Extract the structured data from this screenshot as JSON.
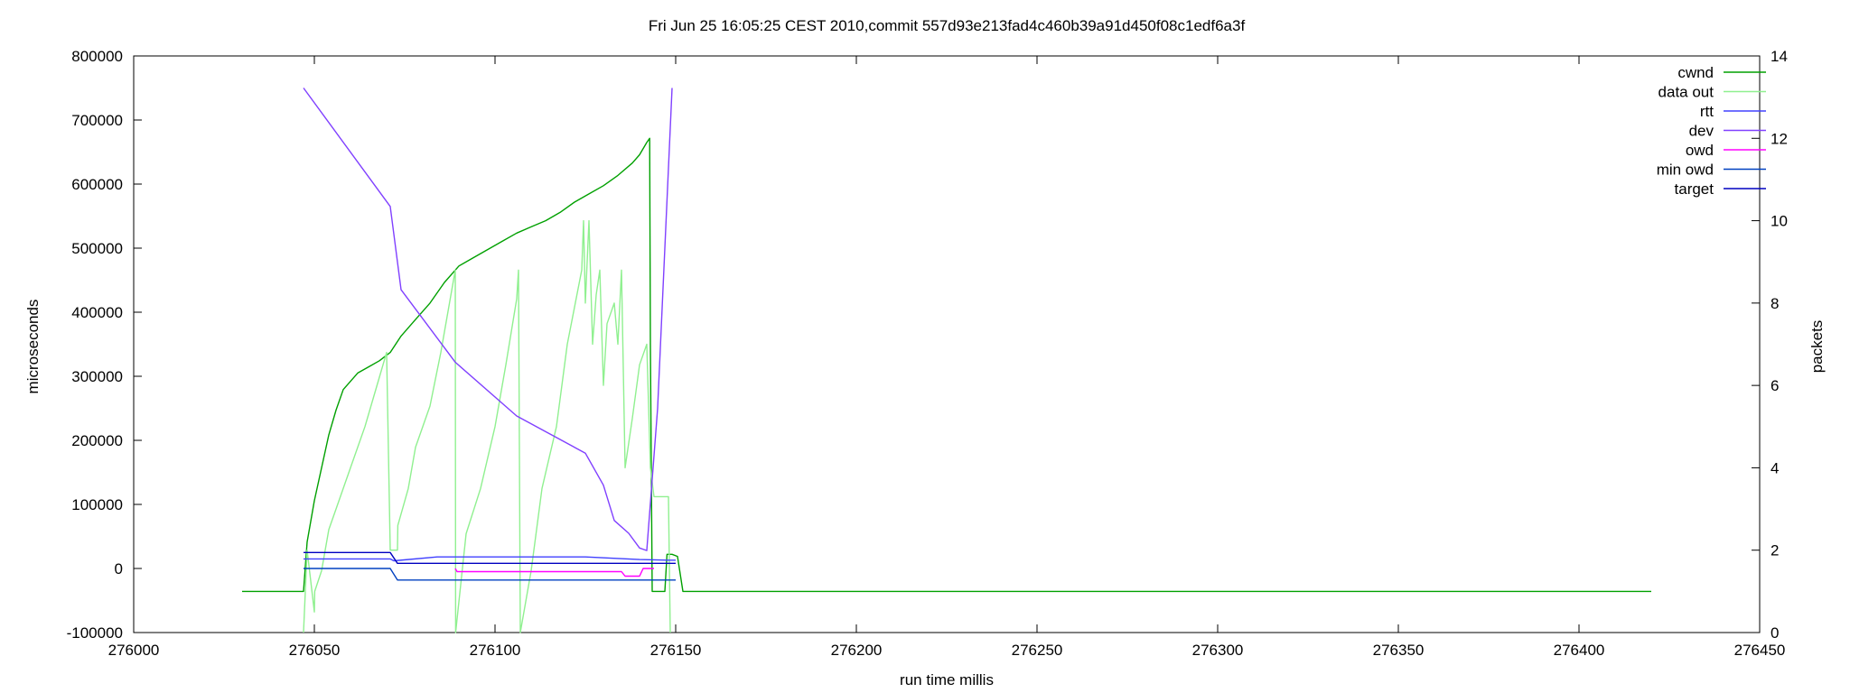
{
  "chart_data": {
    "type": "line",
    "title": "Fri Jun 25 16:05:25 CEST 2010,commit 557d93e213fad4c460b39a91d450f08c1edf6a3f",
    "xlabel": "run time millis",
    "ylabel": "microseconds",
    "y2label": "packets",
    "xlim": [
      276000,
      276450
    ],
    "ylim": [
      -100000,
      800000
    ],
    "y2lim": [
      0,
      14
    ],
    "x_ticks": [
      276000,
      276050,
      276100,
      276150,
      276200,
      276250,
      276300,
      276350,
      276400,
      276450
    ],
    "y_ticks": [
      -100000,
      0,
      100000,
      200000,
      300000,
      400000,
      500000,
      600000,
      700000,
      800000
    ],
    "y2_ticks": [
      0,
      2,
      4,
      6,
      8,
      10,
      12,
      14
    ],
    "legend_position": "top-right",
    "grid": false,
    "series": [
      {
        "name": "cwnd",
        "axis": "y2",
        "color": "#00a000",
        "points": [
          [
            276030,
            1
          ],
          [
            276047,
            1
          ],
          [
            276048,
            2.2
          ],
          [
            276050,
            3.2
          ],
          [
            276052,
            4.0
          ],
          [
            276054,
            4.8
          ],
          [
            276056,
            5.4
          ],
          [
            276058,
            5.9
          ],
          [
            276060,
            6.1
          ],
          [
            276062,
            6.3
          ],
          [
            276065,
            6.45
          ],
          [
            276068,
            6.6
          ],
          [
            276071,
            6.8
          ],
          [
            276074,
            7.2
          ],
          [
            276078,
            7.6
          ],
          [
            276082,
            8.0
          ],
          [
            276086,
            8.5
          ],
          [
            276090,
            8.9
          ],
          [
            276094,
            9.1
          ],
          [
            276098,
            9.3
          ],
          [
            276102,
            9.5
          ],
          [
            276106,
            9.7
          ],
          [
            276110,
            9.85
          ],
          [
            276114,
            10.0
          ],
          [
            276118,
            10.2
          ],
          [
            276122,
            10.45
          ],
          [
            276126,
            10.65
          ],
          [
            276130,
            10.85
          ],
          [
            276134,
            11.1
          ],
          [
            276138,
            11.4
          ],
          [
            276140,
            11.6
          ],
          [
            276142,
            11.9
          ],
          [
            276142.8,
            12.0
          ],
          [
            276143,
            7.0
          ],
          [
            276143.5,
            1.0
          ],
          [
            276147,
            1.0
          ],
          [
            276147.6,
            1.9
          ],
          [
            276149,
            1.9
          ],
          [
            276150.5,
            1.85
          ],
          [
            276152,
            1.0
          ],
          [
            276420,
            1.0
          ]
        ]
      },
      {
        "name": "data out",
        "axis": "y2",
        "color": "#90f090",
        "points": [
          [
            276047,
            0
          ],
          [
            276048,
            2
          ],
          [
            276050,
            0.5
          ],
          [
            276050.1,
            1.0
          ],
          [
            276052,
            1.5
          ],
          [
            276054,
            2.5
          ],
          [
            276056,
            3.0
          ],
          [
            276060,
            4.0
          ],
          [
            276064,
            5.0
          ],
          [
            276068,
            6.2
          ],
          [
            276070,
            6.8
          ],
          [
            276071,
            2.0
          ],
          [
            276073,
            2.0
          ],
          [
            276073.1,
            2.6
          ],
          [
            276076,
            3.5
          ],
          [
            276078,
            4.5
          ],
          [
            276082,
            5.5
          ],
          [
            276085,
            6.8
          ],
          [
            276089,
            8.8
          ],
          [
            276089.1,
            0
          ],
          [
            276092,
            2.4
          ],
          [
            276096,
            3.5
          ],
          [
            276100,
            5.0
          ],
          [
            276103,
            6.5
          ],
          [
            276106,
            8.1
          ],
          [
            276106.5,
            8.8
          ],
          [
            276107,
            0
          ],
          [
            276110,
            1.5
          ],
          [
            276113,
            3.5
          ],
          [
            276117,
            5.0
          ],
          [
            276120,
            7.0
          ],
          [
            276124,
            8.8
          ],
          [
            276124.5,
            10.0
          ],
          [
            276125,
            8.0
          ],
          [
            276126,
            10.0
          ],
          [
            276127,
            7.0
          ],
          [
            276128,
            8.2
          ],
          [
            276129,
            8.8
          ],
          [
            276130,
            6.0
          ],
          [
            276131,
            7.5
          ],
          [
            276133,
            8.0
          ],
          [
            276134,
            7.0
          ],
          [
            276135,
            8.8
          ],
          [
            276136,
            4.0
          ],
          [
            276138,
            5.2
          ],
          [
            276140,
            6.5
          ],
          [
            276142,
            7.0
          ],
          [
            276143,
            4.0
          ],
          [
            276144,
            3.3
          ],
          [
            276148,
            3.3
          ],
          [
            276148.5,
            0
          ]
        ]
      },
      {
        "name": "rtt",
        "axis": "y",
        "color": "#4040ff",
        "points": [
          [
            276047,
            15000
          ],
          [
            276071,
            15000
          ],
          [
            276072,
            12000
          ],
          [
            276084,
            18000
          ],
          [
            276125,
            18000
          ],
          [
            276140,
            14000
          ],
          [
            276148,
            13000
          ],
          [
            276150,
            13000
          ]
        ]
      },
      {
        "name": "dev",
        "axis": "y",
        "color": "#8040ff",
        "points": [
          [
            276047,
            750000
          ],
          [
            276071,
            565000
          ],
          [
            276074,
            435000
          ],
          [
            276089,
            322000
          ],
          [
            276106,
            238000
          ],
          [
            276125,
            180000
          ],
          [
            276130,
            130000
          ],
          [
            276133,
            75000
          ],
          [
            276137,
            55000
          ],
          [
            276140,
            32000
          ],
          [
            276142,
            28000
          ],
          [
            276145,
            250000
          ],
          [
            276149,
            750000
          ]
        ]
      },
      {
        "name": "owd",
        "axis": "y",
        "color": "#ff00ff",
        "points": [
          [
            276089,
            0
          ],
          [
            276089.5,
            -5000
          ],
          [
            276135,
            -5000
          ],
          [
            276136,
            -12000
          ],
          [
            276140,
            -12000
          ],
          [
            276141,
            0
          ],
          [
            276144,
            0
          ]
        ]
      },
      {
        "name": "min owd",
        "axis": "y",
        "color": "#0040c0",
        "points": [
          [
            276047,
            0
          ],
          [
            276071,
            0
          ],
          [
            276073,
            -18000
          ],
          [
            276150,
            -18000
          ]
        ]
      },
      {
        "name": "target",
        "axis": "y",
        "color": "#0000c0",
        "points": [
          [
            276047,
            25000
          ],
          [
            276071,
            25000
          ],
          [
            276073,
            8000
          ],
          [
            276150,
            8000
          ]
        ]
      }
    ]
  }
}
